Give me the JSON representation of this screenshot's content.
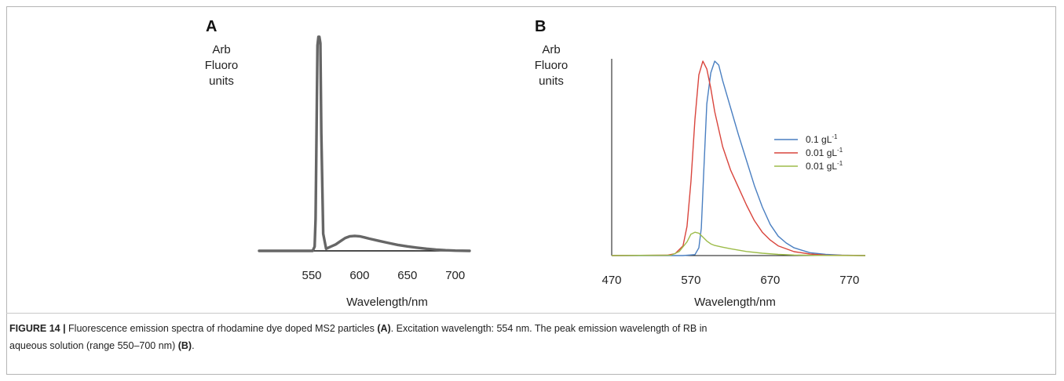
{
  "chart_data": [
    {
      "panel": "A",
      "type": "line",
      "ylabel_lines": [
        "Arb",
        "Fluoro",
        "units"
      ],
      "xlabel": "Wavelength/nm",
      "xticks": [
        550,
        600,
        650,
        700
      ],
      "xlim": [
        495,
        715
      ],
      "ylim": [
        0,
        1
      ],
      "grid": false,
      "series": [
        {
          "color": "#666666",
          "x": [
            495,
            551,
            553,
            554,
            555,
            556,
            557,
            558,
            559,
            560,
            562,
            565,
            570,
            575,
            580,
            585,
            590,
            595,
            600,
            605,
            610,
            620,
            630,
            640,
            650,
            660,
            670,
            680,
            690,
            700,
            715
          ],
          "y": [
            0,
            0,
            0.02,
            0.15,
            0.55,
            0.96,
            1.0,
            1.0,
            0.97,
            0.55,
            0.08,
            0.01,
            0.02,
            0.03,
            0.045,
            0.06,
            0.068,
            0.07,
            0.068,
            0.063,
            0.057,
            0.047,
            0.037,
            0.028,
            0.021,
            0.015,
            0.01,
            0.006,
            0.003,
            0.001,
            0
          ]
        }
      ]
    },
    {
      "panel": "B",
      "type": "line",
      "ylabel_lines": [
        "Arb",
        "Fluoro",
        "units"
      ],
      "xlabel": "Wavelength/nm",
      "xticks": [
        470,
        570,
        670,
        770
      ],
      "xlim": [
        470,
        790
      ],
      "ylim": [
        0,
        1
      ],
      "grid": false,
      "legend_position": "right",
      "series": [
        {
          "name": "0.1 gL",
          "name_sup": "-1",
          "color": "#4a7fc1",
          "x": [
            470,
            560,
            575,
            580,
            583,
            586,
            590,
            595,
            600,
            605,
            610,
            620,
            630,
            640,
            650,
            660,
            670,
            680,
            690,
            700,
            720,
            740,
            760,
            790
          ],
          "y": [
            0,
            0,
            0.005,
            0.04,
            0.14,
            0.42,
            0.78,
            0.94,
            1.0,
            0.98,
            0.9,
            0.76,
            0.62,
            0.49,
            0.36,
            0.25,
            0.16,
            0.1,
            0.065,
            0.04,
            0.015,
            0.006,
            0.002,
            0
          ]
        },
        {
          "name": "0.01 gL",
          "name_sup": "-1",
          "color": "#d9453d",
          "x": [
            470,
            540,
            550,
            560,
            565,
            570,
            575,
            580,
            585,
            590,
            595,
            600,
            610,
            620,
            630,
            640,
            650,
            660,
            670,
            680,
            700,
            720,
            740,
            790
          ],
          "y": [
            0,
            0.002,
            0.01,
            0.05,
            0.15,
            0.38,
            0.7,
            0.93,
            1.0,
            0.96,
            0.86,
            0.74,
            0.56,
            0.44,
            0.35,
            0.26,
            0.18,
            0.12,
            0.08,
            0.05,
            0.02,
            0.008,
            0.002,
            0
          ]
        },
        {
          "name": "0.01 gL",
          "name_sup": "-1",
          "color": "#9dbc4a",
          "x": [
            470,
            545,
            555,
            565,
            570,
            575,
            580,
            585,
            590,
            595,
            600,
            610,
            620,
            630,
            640,
            660,
            680,
            700,
            730,
            790
          ],
          "y": [
            0,
            0.002,
            0.02,
            0.07,
            0.11,
            0.12,
            0.115,
            0.095,
            0.075,
            0.06,
            0.052,
            0.043,
            0.035,
            0.028,
            0.021,
            0.012,
            0.006,
            0.003,
            0.001,
            0
          ]
        }
      ]
    }
  ],
  "caption": {
    "label": "FIGURE 14 |",
    "text_1": " Fluorescence emission spectra of rhodamine dye doped MS2 particles ",
    "ref_a": "(A)",
    "text_2": ". Excitation wavelength: 554 nm. The peak emission wavelength of RB in",
    "text_3": "aqueous solution (range 550–700 nm) ",
    "ref_b": "(B)",
    "text_4": "."
  }
}
